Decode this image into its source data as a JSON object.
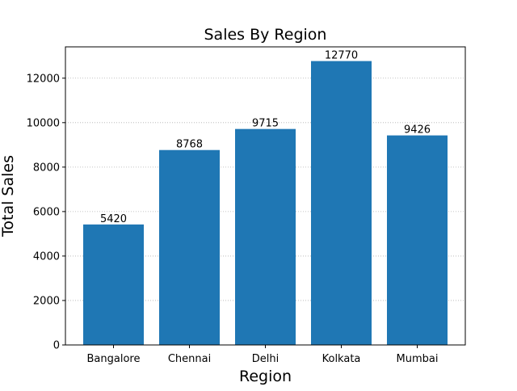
{
  "chart_data": {
    "type": "bar",
    "title": "Sales By Region",
    "xlabel": "Region",
    "ylabel": "Total Sales",
    "categories": [
      "Bangalore",
      "Chennai",
      "Delhi",
      "Kolkata",
      "Mumbai"
    ],
    "values": [
      5420,
      8768,
      9715,
      12770,
      9426
    ],
    "data_labels": [
      "5420",
      "8768",
      "9715",
      "12770",
      "9426"
    ],
    "ylim": [
      0,
      13409
    ],
    "yticks": [
      0,
      2000,
      4000,
      6000,
      8000,
      10000,
      12000
    ],
    "ytick_labels": [
      "0",
      "2000",
      "4000",
      "6000",
      "8000",
      "10000",
      "12000"
    ],
    "grid": {
      "y": true,
      "x": false,
      "style": "dotted"
    },
    "legend": "none",
    "colors": {
      "bar": "#1f77b4",
      "grid": "#b0b0b0",
      "axis": "#000000",
      "text": "#000000"
    }
  }
}
